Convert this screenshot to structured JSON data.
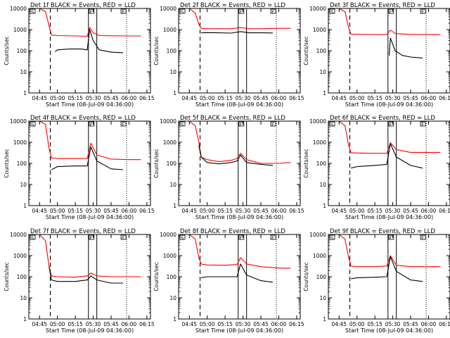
{
  "common": {
    "xlabel": "Start Time (08-Jul-09 04:36:00)",
    "ylabel": "Counts/sec",
    "x_tick_labels": [
      "04:45",
      "05:00",
      "05:15",
      "05:30",
      "05:45",
      "06:00",
      "06:15"
    ],
    "y_tick_labels": [
      "1",
      "10",
      "100",
      "1000",
      "10000"
    ],
    "colors": {
      "events": "#000000",
      "lld": "#ff0000",
      "axes": "#000000"
    },
    "flags": [
      "S",
      "F",
      "E"
    ],
    "legend": "BLACK = Events, RED = LLD"
  },
  "chart_data": [
    {
      "type": "line",
      "title": "Det 1f BLACK = Events, RED = LLD",
      "xlabel": "Start Time (08-Jul-09 04:36:00)",
      "ylabel": "Counts/sec",
      "ylim": [
        1,
        10000
      ],
      "yscale": "log",
      "xlim": [
        "04:36",
        "06:18"
      ],
      "markers": {
        "dashed": "04:54",
        "solid": [
          "05:26",
          "05:33"
        ],
        "dotted": "05:58"
      },
      "series": [
        {
          "name": "LLD",
          "color": "#ff0000",
          "x": [
            "04:36",
            "04:45",
            "04:50",
            "04:53",
            "04:55",
            "05:00",
            "05:15",
            "05:25",
            "05:27",
            "05:30",
            "05:35",
            "05:45",
            "06:00",
            "06:10"
          ],
          "y": [
            10000,
            10000,
            7000,
            1500,
            550,
            520,
            500,
            480,
            1250,
            700,
            520,
            510,
            500,
            500
          ]
        },
        {
          "name": "Events",
          "color": "#000000",
          "x": [
            "04:58",
            "05:00",
            "05:10",
            "05:20",
            "05:25",
            "05:27",
            "05:30",
            "05:35",
            "05:45",
            "05:55"
          ],
          "y": [
            90,
            110,
            120,
            120,
            110,
            1000,
            300,
            110,
            85,
            80
          ]
        }
      ]
    },
    {
      "type": "line",
      "title": "Det 2f BLACK = Events, RED = LLD",
      "xlabel": "Start Time (08-Jul-09 04:36:00)",
      "ylabel": "Counts/sec",
      "ylim": [
        1,
        10000
      ],
      "yscale": "log",
      "xlim": [
        "04:36",
        "06:18"
      ],
      "markers": {
        "dashed": "04:54",
        "solid": [
          "05:26",
          "05:33"
        ],
        "dotted": "05:58"
      },
      "series": [
        {
          "name": "LLD",
          "color": "#ff0000",
          "x": [
            "04:36",
            "04:45",
            "04:50",
            "04:53",
            "04:55",
            "05:00",
            "05:10",
            "05:20",
            "05:28",
            "05:35",
            "05:45",
            "06:00",
            "06:10"
          ],
          "y": [
            10000,
            10000,
            6000,
            1800,
            1150,
            1100,
            1100,
            1100,
            1250,
            1100,
            1100,
            1150,
            1150
          ]
        },
        {
          "name": "Events",
          "color": "#000000",
          "x": [
            "04:55",
            "05:00",
            "05:10",
            "05:20",
            "05:28",
            "05:35",
            "05:45",
            "05:55"
          ],
          "y": [
            700,
            720,
            700,
            680,
            800,
            700,
            700,
            690
          ]
        }
      ]
    },
    {
      "type": "line",
      "title": "Det 3f BLACK = Events, RED = LLD",
      "xlabel": "Start Time (08-Jul-09 04:36:00)",
      "ylabel": "Counts/sec",
      "ylim": [
        1,
        10000
      ],
      "yscale": "log",
      "xlim": [
        "04:36",
        "06:18"
      ],
      "markers": {
        "dashed": "04:54",
        "solid": [
          "05:26",
          "05:33"
        ],
        "dotted": "05:58"
      },
      "series": [
        {
          "name": "LLD",
          "color": "#ff0000",
          "x": [
            "04:36",
            "04:45",
            "04:50",
            "04:53",
            "04:55",
            "05:00",
            "05:15",
            "05:25",
            "05:28",
            "05:32",
            "05:45",
            "06:00",
            "06:10"
          ],
          "y": [
            10000,
            10000,
            7000,
            1200,
            600,
            600,
            580,
            580,
            950,
            650,
            590,
            590,
            580
          ]
        },
        {
          "name": "Events",
          "color": "#000000",
          "x": [
            "05:27",
            "05:28",
            "05:32",
            "05:38",
            "05:45",
            "05:55"
          ],
          "y": [
            60,
            400,
            100,
            60,
            50,
            45
          ]
        }
      ]
    },
    {
      "type": "line",
      "title": "Det 4f BLACK = Events, RED = LLD",
      "xlabel": "Start Time (08-Jul-09 04:36:00)",
      "ylabel": "Counts/sec",
      "ylim": [
        1,
        10000
      ],
      "yscale": "log",
      "xlim": [
        "04:36",
        "06:18"
      ],
      "markers": {
        "dashed": "04:54",
        "solid": [
          "05:26",
          "05:33"
        ],
        "dotted": "05:58"
      },
      "series": [
        {
          "name": "LLD",
          "color": "#ff0000",
          "x": [
            "04:36",
            "04:45",
            "04:50",
            "04:53",
            "04:55",
            "05:00",
            "05:15",
            "05:25",
            "05:28",
            "05:33",
            "05:45",
            "06:00",
            "06:10"
          ],
          "y": [
            10000,
            10000,
            7000,
            500,
            180,
            170,
            170,
            170,
            900,
            250,
            160,
            150,
            150
          ]
        },
        {
          "name": "Events",
          "color": "#000000",
          "x": [
            "04:55",
            "05:00",
            "05:15",
            "05:25",
            "05:28",
            "05:33",
            "05:45",
            "05:55"
          ],
          "y": [
            50,
            70,
            75,
            75,
            600,
            130,
            55,
            50
          ]
        }
      ]
    },
    {
      "type": "line",
      "title": "Det 5f BLACK = Events, RED = LLD",
      "xlabel": "Start Time (08-Jul-09 04:36:00)",
      "ylabel": "Counts/sec",
      "ylim": [
        1,
        10000
      ],
      "yscale": "log",
      "xlim": [
        "04:36",
        "06:18"
      ],
      "markers": {
        "dashed": "04:54",
        "solid": [
          "05:26",
          "05:33"
        ],
        "dotted": "05:58"
      },
      "series": [
        {
          "name": "LLD",
          "color": "#ff0000",
          "x": [
            "04:36",
            "04:45",
            "04:50",
            "04:53",
            "04:55",
            "05:00",
            "05:10",
            "05:20",
            "05:25",
            "05:28",
            "05:33",
            "05:45",
            "06:00",
            "06:10"
          ],
          "y": [
            10000,
            10000,
            6000,
            1000,
            200,
            150,
            120,
            140,
            170,
            300,
            150,
            100,
            100,
            110
          ]
        },
        {
          "name": "Events",
          "color": "#000000",
          "x": [
            "04:53",
            "04:55",
            "05:00",
            "05:10",
            "05:20",
            "05:25",
            "05:28",
            "05:33",
            "05:45",
            "05:55"
          ],
          "y": [
            700,
            200,
            110,
            95,
            110,
            130,
            250,
            110,
            90,
            80
          ]
        }
      ]
    },
    {
      "type": "line",
      "title": "Det 6f BLACK = Events, RED = LLD",
      "xlabel": "Start Time (08-Jul-09 04:36:00)",
      "ylabel": "Counts/sec",
      "ylim": [
        1,
        10000
      ],
      "yscale": "log",
      "xlim": [
        "04:36",
        "06:18"
      ],
      "markers": {
        "dashed": "04:54",
        "solid": [
          "05:26",
          "05:33"
        ],
        "dotted": "05:58"
      },
      "series": [
        {
          "name": "LLD",
          "color": "#ff0000",
          "x": [
            "04:36",
            "04:45",
            "04:50",
            "04:53",
            "04:55",
            "05:00",
            "05:15",
            "05:25",
            "05:28",
            "05:33",
            "05:45",
            "06:00",
            "06:10"
          ],
          "y": [
            10000,
            10000,
            6000,
            700,
            320,
            310,
            300,
            300,
            950,
            450,
            330,
            330,
            330
          ]
        },
        {
          "name": "Events",
          "color": "#000000",
          "x": [
            "04:55",
            "05:00",
            "05:15",
            "05:25",
            "05:28",
            "05:33",
            "05:45",
            "05:55"
          ],
          "y": [
            60,
            70,
            80,
            90,
            850,
            200,
            80,
            60
          ]
        }
      ]
    },
    {
      "type": "line",
      "title": "Det 7f BLACK = Events, RED = LLD",
      "xlabel": "Start Time (08-Jul-09 04:36:00)",
      "ylabel": "Counts/sec",
      "ylim": [
        1,
        10000
      ],
      "yscale": "log",
      "xlim": [
        "04:36",
        "06:18"
      ],
      "markers": {
        "dashed": "04:54",
        "solid": [
          "05:26",
          "05:33"
        ],
        "dotted": "05:58"
      },
      "series": [
        {
          "name": "LLD",
          "color": "#ff0000",
          "x": [
            "04:36",
            "04:45",
            "04:50",
            "04:53",
            "04:55",
            "05:00",
            "05:15",
            "05:25",
            "05:28",
            "05:33",
            "05:45",
            "06:00",
            "06:10"
          ],
          "y": [
            10000,
            10000,
            5000,
            300,
            110,
            100,
            95,
            110,
            150,
            110,
            100,
            100,
            100
          ]
        },
        {
          "name": "Events",
          "color": "#000000",
          "x": [
            "04:53",
            "04:55",
            "05:00",
            "05:15",
            "05:25",
            "05:28",
            "05:33",
            "05:45",
            "05:55"
          ],
          "y": [
            300,
            70,
            60,
            60,
            70,
            110,
            70,
            50,
            50
          ]
        }
      ]
    },
    {
      "type": "line",
      "title": "Det 8f BLACK = Events, RED = LLD",
      "xlabel": "Start Time (08-Jul-09 04:36:00)",
      "ylabel": "Counts/sec",
      "ylim": [
        1,
        10000
      ],
      "yscale": "log",
      "xlim": [
        "04:36",
        "06:18"
      ],
      "markers": {
        "dashed": "04:54",
        "solid": [
          "05:26",
          "05:33"
        ],
        "dotted": "05:58"
      },
      "series": [
        {
          "name": "LLD",
          "color": "#ff0000",
          "x": [
            "04:36",
            "04:45",
            "04:50",
            "04:53",
            "04:55",
            "05:00",
            "05:15",
            "05:25",
            "05:28",
            "05:33",
            "05:45",
            "06:00",
            "06:10"
          ],
          "y": [
            10000,
            10000,
            6000,
            800,
            400,
            360,
            350,
            380,
            800,
            400,
            300,
            260,
            250
          ]
        },
        {
          "name": "Events",
          "color": "#000000",
          "x": [
            "04:55",
            "05:00",
            "05:15",
            "05:25",
            "05:28",
            "05:33",
            "05:45",
            "05:55"
          ],
          "y": [
            90,
            100,
            100,
            100,
            400,
            120,
            65,
            55
          ]
        }
      ]
    },
    {
      "type": "line",
      "title": "Det 9f BLACK = Events, RED = LLD",
      "xlabel": "Start Time (08-Jul-09 04:36:00)",
      "ylabel": "Counts/sec",
      "ylim": [
        1,
        10000
      ],
      "yscale": "log",
      "xlim": [
        "04:36",
        "06:18"
      ],
      "markers": {
        "dashed": "04:54",
        "solid": [
          "05:26",
          "05:33"
        ],
        "dotted": "05:58"
      },
      "series": [
        {
          "name": "LLD",
          "color": "#ff0000",
          "x": [
            "04:36",
            "04:45",
            "04:50",
            "04:53",
            "04:55",
            "05:00",
            "05:15",
            "05:25",
            "05:28",
            "05:33",
            "05:45",
            "06:00",
            "06:10"
          ],
          "y": [
            10000,
            10000,
            6000,
            800,
            320,
            300,
            300,
            320,
            1000,
            350,
            300,
            300,
            300
          ]
        },
        {
          "name": "Events",
          "color": "#000000",
          "x": [
            "04:55",
            "05:00",
            "05:15",
            "05:25",
            "05:28",
            "05:33",
            "05:45",
            "05:55"
          ],
          "y": [
            80,
            90,
            95,
            100,
            900,
            180,
            70,
            60
          ]
        }
      ]
    }
  ]
}
